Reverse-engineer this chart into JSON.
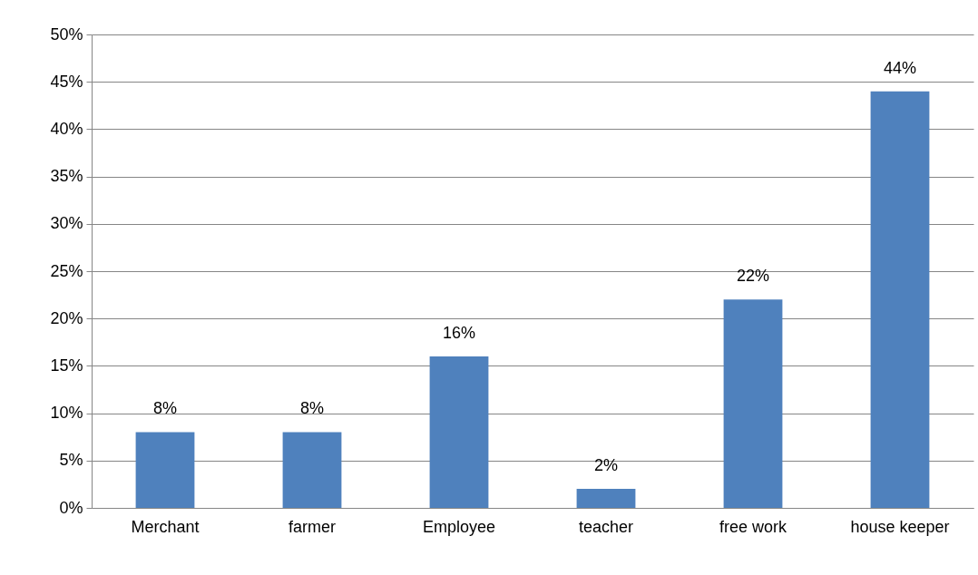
{
  "chart_data": {
    "type": "bar",
    "categories": [
      "Merchant",
      "farmer",
      "Employee",
      "teacher",
      "free work",
      "house keeper"
    ],
    "values": [
      8,
      8,
      16,
      2,
      22,
      44
    ],
    "value_labels": [
      "8%",
      "8%",
      "16%",
      "2%",
      "22%",
      "44%"
    ],
    "color": "#4f81bd",
    "ylim": [
      0,
      50
    ],
    "yticks": [
      {
        "value": 0,
        "label": "0%"
      },
      {
        "value": 5,
        "label": "5%"
      },
      {
        "value": 10,
        "label": "10%"
      },
      {
        "value": 15,
        "label": "15%"
      },
      {
        "value": 20,
        "label": "20%"
      },
      {
        "value": 25,
        "label": "25%"
      },
      {
        "value": 30,
        "label": "30%"
      },
      {
        "value": 35,
        "label": "35%"
      },
      {
        "value": 40,
        "label": "40%"
      },
      {
        "value": 45,
        "label": "45%"
      },
      {
        "value": 50,
        "label": "50%"
      }
    ],
    "grid": "y"
  }
}
